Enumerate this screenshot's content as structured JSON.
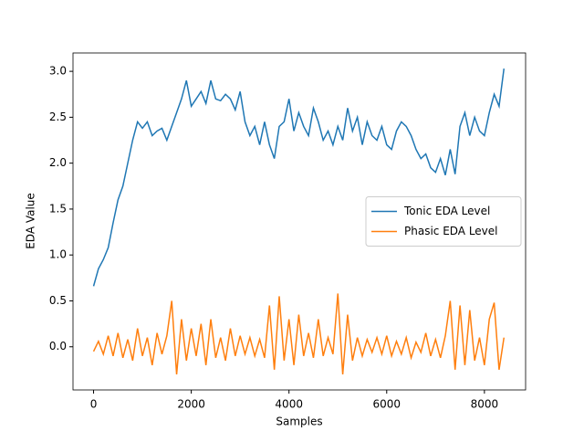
{
  "chart_data": {
    "type": "line",
    "xlabel": "Samples",
    "ylabel": "EDA Value",
    "x": [
      0,
      100,
      200,
      300,
      400,
      500,
      600,
      700,
      800,
      900,
      1000,
      1100,
      1200,
      1300,
      1400,
      1500,
      1600,
      1700,
      1800,
      1900,
      2000,
      2100,
      2200,
      2300,
      2400,
      2500,
      2600,
      2700,
      2800,
      2900,
      3000,
      3100,
      3200,
      3300,
      3400,
      3500,
      3600,
      3700,
      3800,
      3900,
      4000,
      4100,
      4200,
      4300,
      4400,
      4500,
      4600,
      4700,
      4800,
      4900,
      5000,
      5100,
      5200,
      5300,
      5400,
      5500,
      5600,
      5700,
      5800,
      5900,
      6000,
      6100,
      6200,
      6300,
      6400,
      6500,
      6600,
      6700,
      6800,
      6900,
      7000,
      7100,
      7200,
      7300,
      7400,
      7500,
      7600,
      7700,
      7800,
      7900,
      8000,
      8100,
      8200,
      8300,
      8400
    ],
    "series": [
      {
        "name": "Tonic EDA Level",
        "color": "#1f77b4",
        "values": [
          0.66,
          0.85,
          0.95,
          1.08,
          1.35,
          1.6,
          1.75,
          2.0,
          2.25,
          2.45,
          2.38,
          2.45,
          2.3,
          2.35,
          2.38,
          2.25,
          2.4,
          2.55,
          2.7,
          2.9,
          2.62,
          2.7,
          2.78,
          2.65,
          2.9,
          2.7,
          2.68,
          2.75,
          2.7,
          2.58,
          2.78,
          2.45,
          2.3,
          2.4,
          2.2,
          2.45,
          2.2,
          2.05,
          2.4,
          2.45,
          2.7,
          2.35,
          2.55,
          2.4,
          2.3,
          2.6,
          2.45,
          2.25,
          2.35,
          2.2,
          2.4,
          2.25,
          2.6,
          2.35,
          2.5,
          2.2,
          2.45,
          2.3,
          2.25,
          2.4,
          2.2,
          2.15,
          2.35,
          2.45,
          2.4,
          2.3,
          2.15,
          2.05,
          2.1,
          1.95,
          1.9,
          2.05,
          1.87,
          2.15,
          1.88,
          2.4,
          2.55,
          2.3,
          2.5,
          2.35,
          2.3,
          2.55,
          2.75,
          2.62,
          3.03
        ]
      },
      {
        "name": "Phasic EDA Level",
        "color": "#ff7f0e",
        "values": [
          -0.05,
          0.06,
          -0.08,
          0.12,
          -0.1,
          0.15,
          -0.12,
          0.08,
          -0.15,
          0.2,
          -0.1,
          0.1,
          -0.2,
          0.15,
          -0.08,
          0.12,
          0.5,
          -0.3,
          0.3,
          -0.15,
          0.2,
          -0.1,
          0.25,
          -0.2,
          0.3,
          -0.12,
          0.1,
          -0.15,
          0.2,
          -0.1,
          0.12,
          -0.08,
          0.1,
          -0.1,
          0.08,
          -0.12,
          0.45,
          -0.25,
          0.55,
          -0.15,
          0.3,
          -0.2,
          0.35,
          -0.1,
          0.15,
          -0.12,
          0.3,
          -0.1,
          0.1,
          -0.08,
          0.58,
          -0.3,
          0.35,
          -0.15,
          0.1,
          -0.1,
          0.08,
          -0.06,
          0.1,
          -0.08,
          0.12,
          -0.1,
          0.06,
          -0.08,
          0.1,
          -0.12,
          0.05,
          -0.06,
          0.15,
          -0.1,
          0.08,
          -0.12,
          0.12,
          0.5,
          -0.25,
          0.45,
          -0.2,
          0.4,
          -0.15,
          0.1,
          -0.2,
          0.3,
          0.48,
          -0.25,
          0.1
        ]
      }
    ],
    "xlim": [
      -421,
      8843
    ],
    "ylim": [
      -0.47,
      3.2
    ],
    "xticks": [
      0,
      2000,
      4000,
      6000,
      8000
    ],
    "yticks": [
      {
        "value": 0,
        "label": "0.0"
      },
      0.5,
      {
        "value": 1,
        "label": "1.0"
      },
      1.5,
      {
        "value": 2,
        "label": "2.0"
      },
      2.5,
      {
        "value": 3,
        "label": "3.0"
      }
    ],
    "grid": false,
    "legend": "center right"
  }
}
